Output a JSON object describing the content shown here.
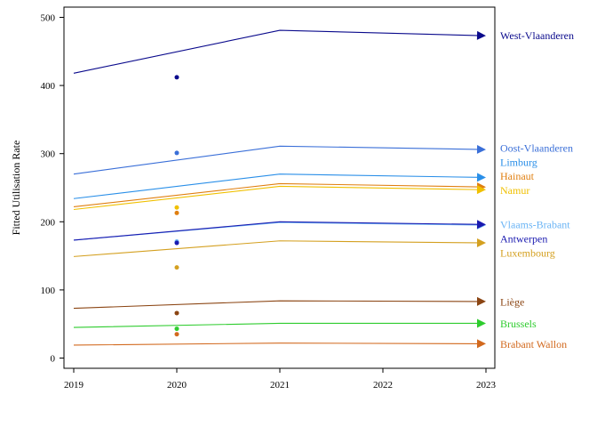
{
  "chart_data": {
    "type": "line",
    "title": "",
    "xlabel": "",
    "ylabel": "Fitted Utilisation Rate",
    "xlim": [
      2019,
      2023
    ],
    "ylim": [
      -15,
      515
    ],
    "xticks": [
      "2019",
      "2020",
      "2021",
      "2022",
      "2023"
    ],
    "yticks": [
      "0",
      "100",
      "200",
      "300",
      "400",
      "500"
    ],
    "grid": false,
    "legend": "direct labels at right end of each line",
    "series": [
      {
        "name": "West-Vlaanderen",
        "color": "#0a0a8c",
        "x": [
          2019,
          2021,
          2023
        ],
        "y": [
          418,
          481,
          473
        ],
        "point2020": 412
      },
      {
        "name": "Oost-Vlaanderen",
        "color": "#3a6fd8",
        "x": [
          2019,
          2021,
          2023
        ],
        "y": [
          270,
          311,
          306
        ],
        "point2020": 301
      },
      {
        "name": "Limburg",
        "color": "#2a8fe8",
        "x": [
          2019,
          2021,
          2023
        ],
        "y": [
          234,
          270,
          265
        ],
        "point2020": 170
      },
      {
        "name": "Hainaut",
        "color": "#e07f10",
        "x": [
          2019,
          2021,
          2023
        ],
        "y": [
          222,
          256,
          251
        ],
        "point2020": 213
      },
      {
        "name": "Namur",
        "color": "#f0c000",
        "x": [
          2019,
          2021,
          2023
        ],
        "y": [
          218,
          252,
          247
        ],
        "point2020": 221
      },
      {
        "name": "Vlaams-Brabant",
        "color": "#6ab4f5",
        "x": [
          2019,
          2021,
          2023
        ],
        "y": [
          173,
          199,
          195
        ],
        "point2020": 171
      },
      {
        "name": "Antwerpen",
        "color": "#1a1ab0",
        "x": [
          2019,
          2021,
          2023
        ],
        "y": [
          173,
          200,
          196
        ],
        "point2020": 169
      },
      {
        "name": "Luxembourg",
        "color": "#d4a020",
        "x": [
          2019,
          2021,
          2023
        ],
        "y": [
          149,
          172,
          169
        ],
        "point2020": 133
      },
      {
        "name": "Liège",
        "color": "#8b4513",
        "x": [
          2019,
          2021,
          2023
        ],
        "y": [
          73,
          84,
          83
        ],
        "point2020": 66
      },
      {
        "name": "Brussels",
        "color": "#2ecc2e",
        "x": [
          2019,
          2021,
          2023
        ],
        "y": [
          45,
          51,
          51
        ],
        "point2020": 43
      },
      {
        "name": "Brabant Wallon",
        "color": "#d2691e",
        "x": [
          2019,
          2021,
          2023
        ],
        "y": [
          19,
          22,
          21
        ],
        "point2020": 35
      }
    ],
    "labels": [
      {
        "series": "West-Vlaanderen",
        "text": "West-Vlaanderen",
        "color": "#0a0a8c",
        "y": 473
      },
      {
        "series": "Oost-Vlaanderen",
        "text": "Oost-Vlaanderen",
        "color": "#3a6fd8",
        "y": 308
      },
      {
        "series": "Limburg",
        "text": "Limburg",
        "color": "#2a8fe8",
        "y": 287
      },
      {
        "series": "Hainaut",
        "text": "Hainaut",
        "color": "#e07f10",
        "y": 267
      },
      {
        "series": "Namur",
        "text": "Namur",
        "color": "#f0c000",
        "y": 246
      },
      {
        "series": "Vlaams-Brabant",
        "text": "Vlaams-Brabant",
        "color": "#6ab4f5",
        "y": 196
      },
      {
        "series": "Antwerpen",
        "text": "Antwerpen",
        "color": "#1a1ab0",
        "y": 175
      },
      {
        "series": "Luxembourg",
        "text": "Luxembourg",
        "color": "#d4a020",
        "y": 154
      },
      {
        "series": "Liège",
        "text": "Liège",
        "color": "#8b4513",
        "y": 82
      },
      {
        "series": "Brussels",
        "text": "Brussels",
        "color": "#2ecc2e",
        "y": 50
      },
      {
        "series": "Brabant Wallon",
        "text": "Brabant Wallon",
        "color": "#d2691e",
        "y": 20
      }
    ]
  }
}
